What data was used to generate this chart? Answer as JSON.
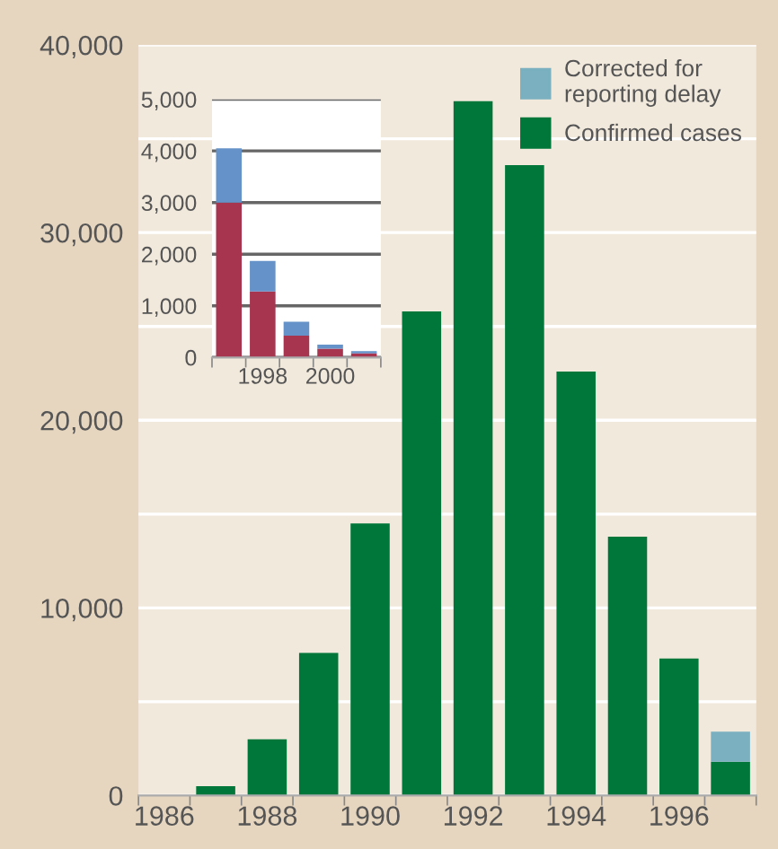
{
  "chart_data": [
    {
      "type": "bar",
      "stacked": true,
      "categories": [
        "1986",
        null,
        "1988",
        null,
        "1990",
        null,
        "1992",
        null,
        "1994",
        null,
        "1996",
        null
      ],
      "series": [
        {
          "name": "Confirmed cases",
          "color": "#00773a",
          "values": [
            0,
            500,
            3000,
            7600,
            14500,
            25800,
            37000,
            33600,
            22600,
            13800,
            7300,
            1800
          ]
        },
        {
          "name": "Corrected for reporting delay",
          "color": "#7ab0c0",
          "values": [
            0,
            0,
            0,
            0,
            0,
            0,
            0,
            0,
            0,
            0,
            0,
            1600
          ]
        }
      ],
      "ylim": [
        0,
        40000
      ],
      "yticks": [
        0,
        {
          "value": 5000,
          "label": null
        },
        "10,000",
        {
          "value": 15000,
          "label": null
        },
        {
          "value": 20000,
          "label": "20,000"
        },
        {
          "value": 25000,
          "label": null
        },
        {
          "value": 30000,
          "label": "30,000"
        },
        {
          "value": 35000,
          "label": null
        },
        {
          "value": 40000,
          "label": "40,000"
        }
      ],
      "grid": "y",
      "legend": "top right"
    },
    {
      "type": "bar",
      "stacked": true,
      "categories": [
        null,
        "1998",
        null,
        "2000",
        null
      ],
      "series": [
        {
          "color": "#a8354f",
          "values": [
            3000,
            1280,
            420,
            170,
            80
          ]
        },
        {
          "color": "#6592c8",
          "values": [
            1050,
            590,
            270,
            80,
            40
          ]
        }
      ],
      "ylim": [
        0,
        5000
      ],
      "yticks": [
        0,
        {
          "value": 1000,
          "label": "1,000"
        },
        {
          "value": 2000,
          "label": "2,000"
        },
        {
          "value": 3000,
          "label": "3,000"
        },
        {
          "value": 4000,
          "label": "4,000"
        },
        {
          "value": 5000,
          "label": "5,000"
        }
      ],
      "grid": "y"
    }
  ]
}
